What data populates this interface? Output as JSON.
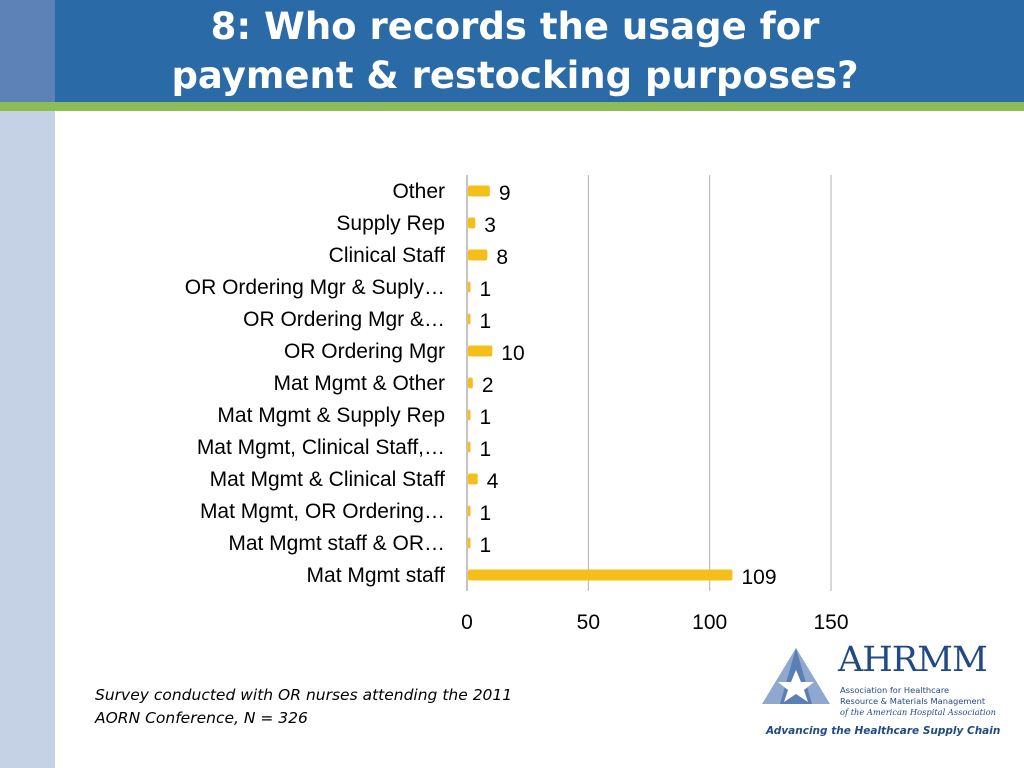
{
  "slide": {
    "title_line1": "8: Who records the usage for",
    "title_line2": "payment & restocking purposes?",
    "footnote_line1": "Survey conducted with OR nurses attending the 2011",
    "footnote_line2": "AORN Conference, N = 326"
  },
  "logo": {
    "name": "AHRMM",
    "sub_line1": "Association for Healthcare",
    "sub_line2": "Resource & Materials Management",
    "sub_line3": "of the American Hospital Association",
    "tagline": "Advancing the Healthcare Supply Chain",
    "colors": {
      "primary": "#1f4a86",
      "mark": "#5a7fb5"
    }
  },
  "colors": {
    "header": "#2a6aa6",
    "accent_line": "#8cbd56",
    "strip": "#c5d1e4"
  },
  "chart_data": {
    "type": "bar",
    "orientation": "horizontal",
    "categories": [
      "Other",
      "Supply Rep",
      "Clinical Staff",
      "OR Ordering Mgr & Suply…",
      "OR Ordering Mgr &…",
      "OR Ordering Mgr",
      "Mat Mgmt & Other",
      "Mat Mgmt & Supply Rep",
      "Mat Mgmt, Clinical Staff,…",
      "Mat Mgmt & Clinical Staff",
      "Mat Mgmt, OR Ordering…",
      "Mat Mgmt staff & OR…",
      "Mat Mgmt staff"
    ],
    "values": [
      9,
      3,
      8,
      1,
      1,
      10,
      2,
      1,
      1,
      4,
      1,
      1,
      109
    ],
    "xlim": [
      0,
      150
    ],
    "xticks": [
      0,
      50,
      100,
      150
    ],
    "grid": "vertical",
    "legend": "none",
    "data_labels": true,
    "bar_color": "#f5bf1a"
  }
}
